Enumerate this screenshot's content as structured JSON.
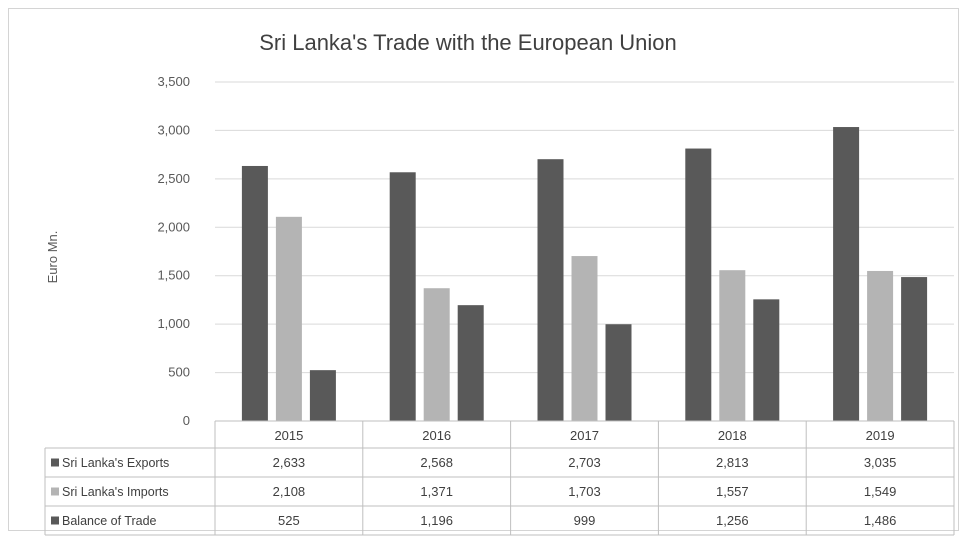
{
  "chart_data": {
    "type": "bar",
    "title": "Sri Lanka's Trade with the European Union",
    "ylabel": "Euro Mn.",
    "xlabel": "",
    "ylim": [
      0,
      3500
    ],
    "ytick_step": 500,
    "yticks": [
      "0",
      "500",
      "1,000",
      "1,500",
      "2,000",
      "2,500",
      "3,000",
      "3,500"
    ],
    "grid": true,
    "legend": "data-table",
    "categories": [
      "2015",
      "2016",
      "2017",
      "2018",
      "2019"
    ],
    "series": [
      {
        "name": "Sri Lanka's Exports",
        "color": "#595959",
        "values": [
          2633,
          2568,
          2703,
          2813,
          3035
        ],
        "labels": [
          "2,633",
          "2,568",
          "2,703",
          "2,813",
          "3,035"
        ]
      },
      {
        "name": "Sri Lanka's Imports",
        "color": "#b4b4b4",
        "values": [
          2108,
          1371,
          1703,
          1557,
          1549
        ],
        "labels": [
          "2,108",
          "1,371",
          "1,703",
          "1,557",
          "1,549"
        ]
      },
      {
        "name": "Balance of Trade",
        "color": "#595959",
        "values": [
          525,
          1196,
          999,
          1256,
          1486
        ],
        "labels": [
          "525",
          "1,196",
          "999",
          "1,256",
          "1,486"
        ]
      }
    ]
  }
}
